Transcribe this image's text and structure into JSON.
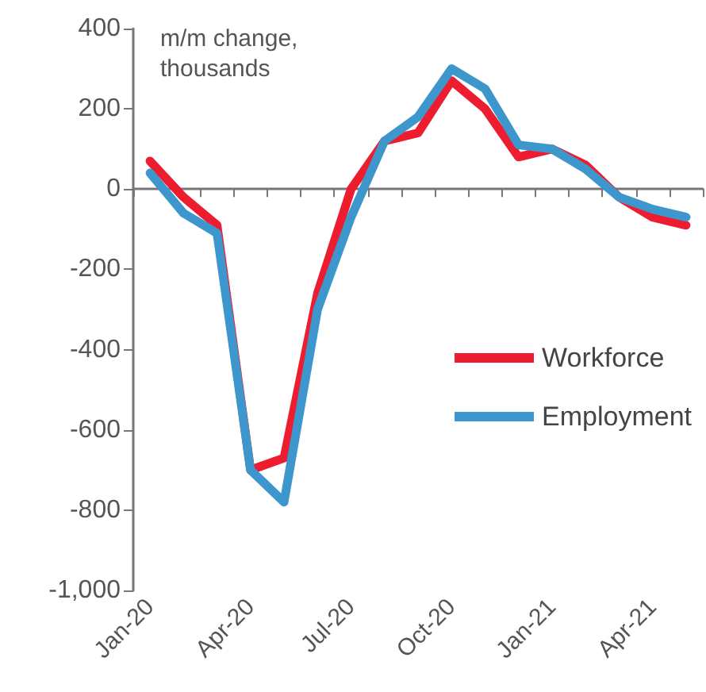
{
  "chart_data": {
    "type": "line",
    "ylabel": "m/m change,\nthousands",
    "categories": [
      "Jan-20",
      null,
      null,
      "Apr-20",
      null,
      null,
      "Jul-20",
      null,
      null,
      "Oct-20",
      null,
      null,
      "Jan-21",
      null,
      null,
      "Apr-21",
      null
    ],
    "series": [
      {
        "name": "Workforce",
        "color": "#ed1c2e",
        "values": [
          70,
          -20,
          -90,
          -700,
          -670,
          -260,
          0,
          120,
          140,
          270,
          200,
          80,
          100,
          60,
          -20,
          -70,
          -90
        ]
      },
      {
        "name": "Employment",
        "color": "#3d97cc",
        "values": [
          40,
          -60,
          -110,
          -700,
          -780,
          -300,
          -70,
          120,
          180,
          300,
          250,
          110,
          100,
          50,
          -20,
          -50,
          -70
        ]
      }
    ],
    "ylim": [
      -1000,
      400
    ],
    "yticks": [
      {
        "value": -1000,
        "label": "-1,000"
      },
      -800,
      -600,
      -400,
      -200,
      0,
      200,
      400
    ],
    "legend": "right",
    "marker": "none",
    "line_style": "solid"
  }
}
